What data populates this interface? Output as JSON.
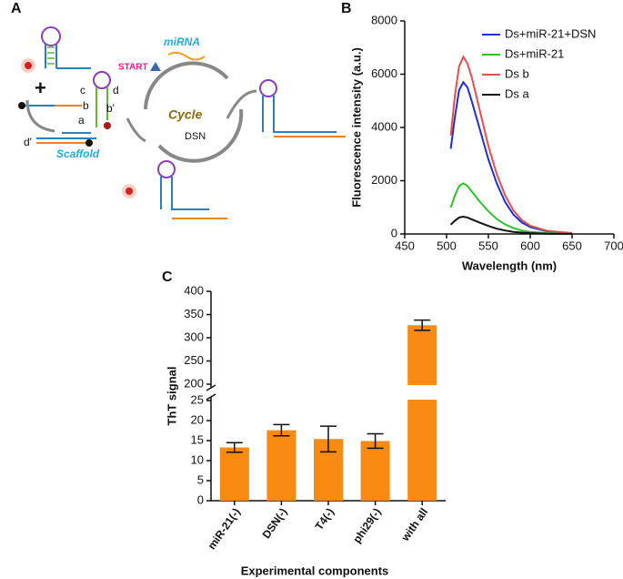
{
  "diagram": {
    "label": "A",
    "mirna": "miRNA",
    "start": "START",
    "cycle": "Cycle",
    "enzyme": "DSN",
    "scaffold": "Scaffold",
    "strands": [
      "a",
      "b",
      "c",
      "d",
      "b'",
      "d'"
    ]
  },
  "chart_data": [
    {
      "label": "B",
      "type": "line",
      "x_label": "Wavelength (nm)",
      "y_label": "Fluorescence intensity (a.u.)",
      "x": [
        505,
        510,
        515,
        520,
        525,
        530,
        540,
        550,
        560,
        570,
        580,
        590,
        600,
        620,
        650
      ],
      "series": [
        {
          "name": "Ds+miR-21+DSN",
          "color": "#1f2fd6",
          "values": [
            3200,
            4400,
            5400,
            5700,
            5500,
            5000,
            3900,
            2800,
            1900,
            1200,
            720,
            430,
            260,
            100,
            25
          ]
        },
        {
          "name": "Ds+miR-21",
          "color": "#2fbf2f",
          "values": [
            1000,
            1450,
            1800,
            1900,
            1800,
            1600,
            1200,
            850,
            560,
            360,
            220,
            130,
            80,
            30,
            10
          ]
        },
        {
          "name": "Ds b",
          "color": "#e0504f",
          "values": [
            3700,
            5200,
            6300,
            6650,
            6400,
            5900,
            4600,
            3300,
            2250,
            1450,
            880,
            520,
            310,
            120,
            30
          ]
        },
        {
          "name": "Ds a",
          "color": "#111111",
          "values": [
            350,
            500,
            620,
            650,
            620,
            550,
            420,
            300,
            200,
            130,
            80,
            50,
            30,
            10,
            5
          ]
        }
      ],
      "xlim": [
        450,
        700
      ],
      "xticks": [
        450,
        500,
        550,
        600,
        650,
        700
      ],
      "ylim": [
        0,
        8000
      ],
      "yticks": [
        0,
        2000,
        4000,
        6000,
        8000
      ],
      "legend": "upper right"
    },
    {
      "label": "C",
      "type": "bar",
      "x_label": "Experimental components",
      "y_label": "ThT signal",
      "categories": [
        "miR-21(-)",
        "DSN(-)",
        "T4(-)",
        "phi29(-)",
        "with all"
      ],
      "values": [
        13.3,
        17.6,
        15.4,
        14.9,
        327
      ],
      "errors": [
        1.2,
        1.4,
        3.2,
        1.8,
        11
      ],
      "color": "#f98b12",
      "ylim": [
        0,
        400
      ],
      "axis_break": [
        25,
        200
      ],
      "yticks": [
        0,
        5,
        10,
        15,
        20,
        25,
        200,
        250,
        300,
        350,
        400
      ]
    }
  ]
}
